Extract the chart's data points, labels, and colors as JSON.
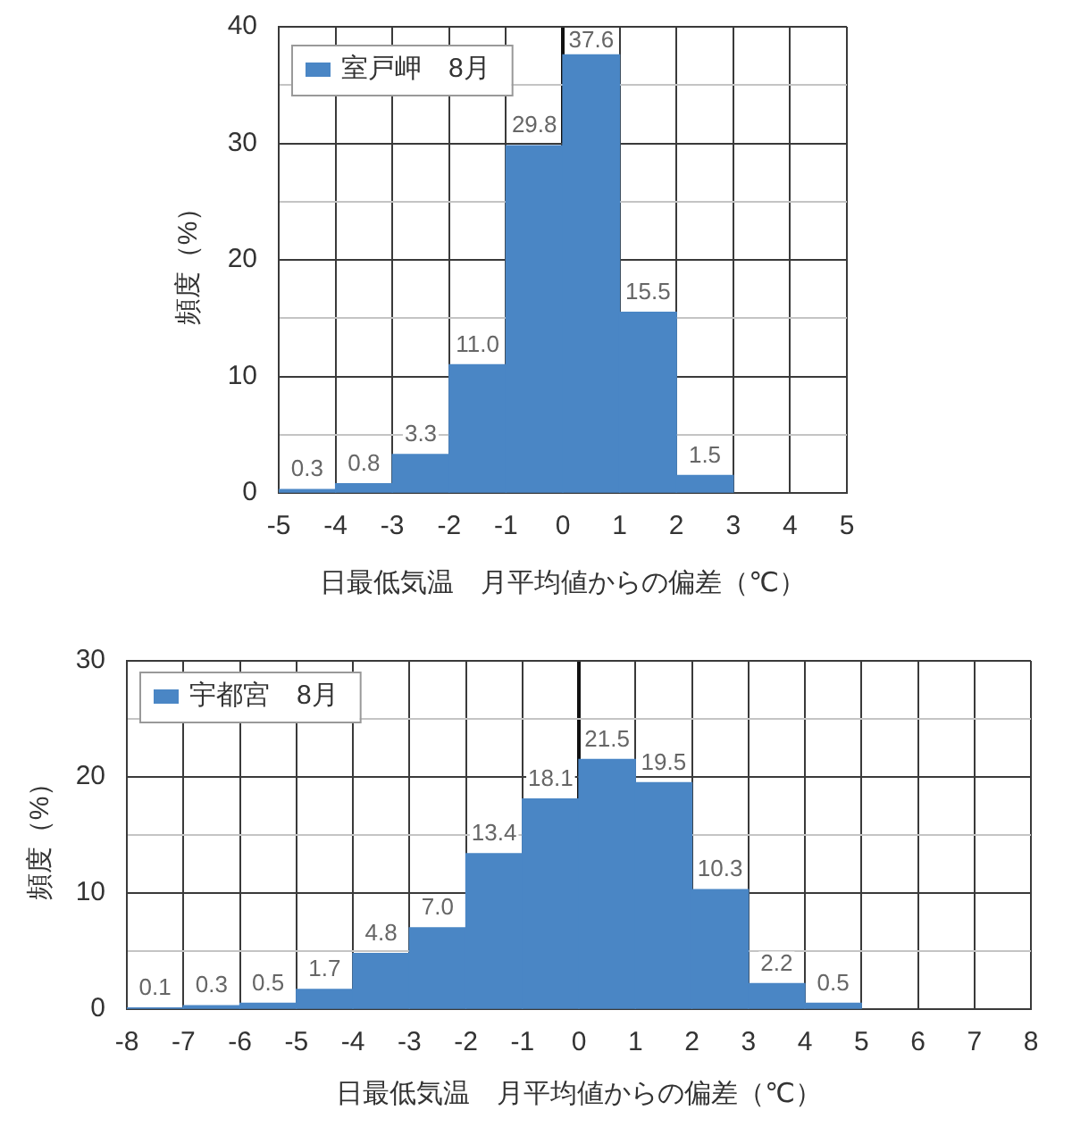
{
  "chart_data": [
    {
      "type": "histogram",
      "xlabel": "日最低気温　月平均値からの偏差（℃）",
      "ylabel": "頻度（%）",
      "bins": [
        -5,
        -4,
        -3,
        -2,
        -1,
        0,
        1,
        2,
        3
      ],
      "series": [
        {
          "name": "室戸岬　8月",
          "color": "#4a86c5",
          "values": [
            0.3,
            0.8,
            3.3,
            11.0,
            29.8,
            37.6,
            15.5,
            1.5
          ],
          "value_labels": [
            "0.3",
            "0.8",
            "3.3",
            "11.0",
            "29.8",
            "37.6",
            "15.5",
            "1.5"
          ]
        }
      ],
      "xlim": [
        -5,
        5
      ],
      "xticks": [
        -5,
        -4,
        -3,
        -2,
        -1,
        0,
        1,
        2,
        3,
        4,
        5
      ],
      "ylim": [
        0,
        40
      ],
      "yticks": [
        0,
        {
          "value": 5,
          "label": null
        },
        10,
        {
          "value": 15,
          "label": null
        },
        20,
        {
          "value": 25,
          "label": null
        },
        30,
        {
          "value": 35,
          "label": null
        },
        40
      ],
      "grid": true,
      "legend": "top left"
    },
    {
      "type": "histogram",
      "xlabel": "日最低気温　月平均値からの偏差（℃）",
      "ylabel": "頻度（%）",
      "bins": [
        -8,
        -7,
        -6,
        -5,
        -4,
        -3,
        -2,
        -1,
        0,
        1,
        2,
        3,
        4,
        5
      ],
      "series": [
        {
          "name": "宇都宮　8月",
          "color": "#4a86c5",
          "values": [
            0.1,
            0.3,
            0.5,
            1.7,
            4.8,
            7.0,
            13.4,
            18.1,
            21.5,
            19.5,
            10.3,
            2.2,
            0.5
          ],
          "value_labels": [
            "0.1",
            "0.3",
            "0.5",
            "1.7",
            "4.8",
            "7.0",
            "13.4",
            "18.1",
            "21.5",
            "19.5",
            "10.3",
            "2.2",
            "0.5"
          ]
        }
      ],
      "xlim": [
        -8,
        8
      ],
      "xticks": [
        -8,
        -7,
        -6,
        -5,
        -4,
        -3,
        -2,
        -1,
        0,
        1,
        2,
        3,
        4,
        5,
        6,
        7,
        8
      ],
      "ylim": [
        0,
        30
      ],
      "yticks": [
        0,
        {
          "value": 5,
          "label": null
        },
        10,
        {
          "value": 15,
          "label": null
        },
        20,
        {
          "value": 25,
          "label": null
        },
        30
      ],
      "grid": true,
      "legend": "top left"
    }
  ]
}
